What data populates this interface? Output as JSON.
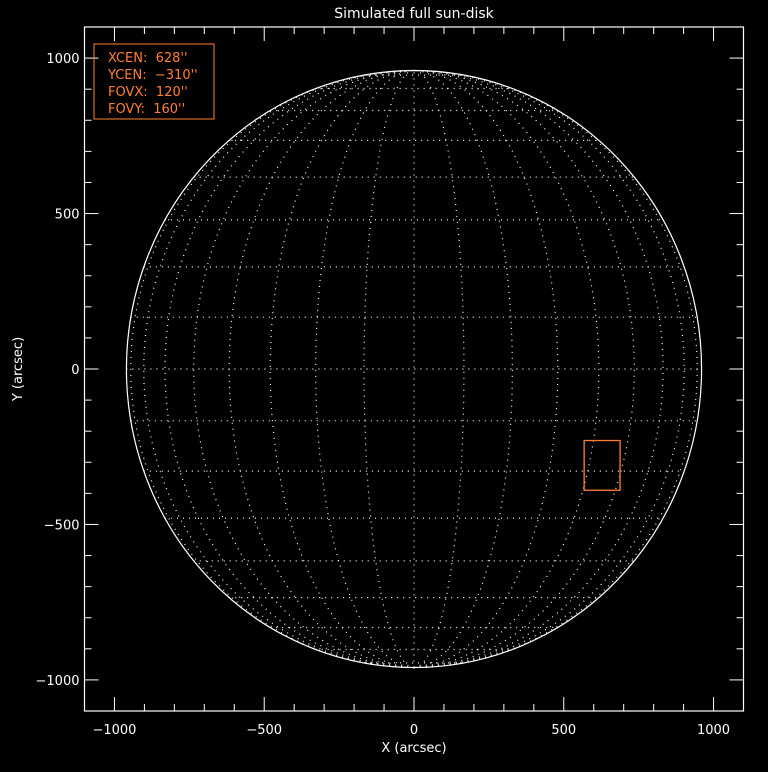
{
  "chart_data": {
    "type": "scatter",
    "title": "Simulated full sun-disk",
    "xlabel": "X (arcsec)",
    "ylabel": "Y (arcsec)",
    "xlim": [
      -1100,
      1100
    ],
    "ylim": [
      -1100,
      1100
    ],
    "xticks": [
      -1000,
      -500,
      0,
      500,
      1000
    ],
    "yticks": [
      -1000,
      -500,
      0,
      500,
      1000
    ],
    "xtick_labels": [
      "−1000",
      "−500",
      "0",
      "500",
      "1000"
    ],
    "ytick_labels": [
      "−1000",
      "−500",
      "0",
      "500",
      "1000"
    ],
    "minor_tick_step": 100,
    "grid": false,
    "disk": {
      "center": [
        0,
        0
      ],
      "radius_arcsec": 960,
      "grid_spacing_deg": 10
    },
    "fov_box": {
      "xcen": 628,
      "ycen": -310,
      "fovx": 120,
      "fovy": 160
    },
    "legend": {
      "placement": "top-left",
      "lines": [
        "XCEN:  628''",
        "YCEN:  −310''",
        "FOVX:  120''",
        "FOVY:  160''"
      ]
    },
    "colors": {
      "background": "#000000",
      "axes": "#ffffff",
      "disk": "#ffffff",
      "annotation": "#ff8030"
    }
  }
}
